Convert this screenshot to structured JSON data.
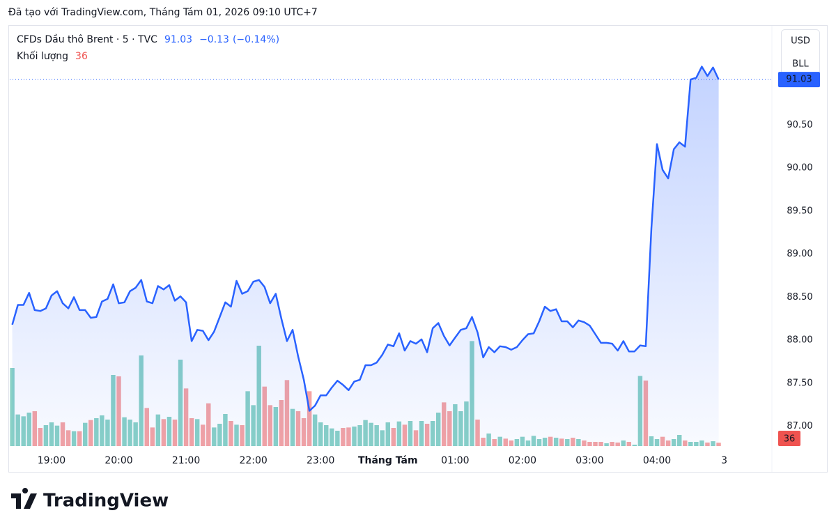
{
  "chart_data": {
    "type": "line",
    "credit": "Đã tạo với TradingView.com, Tháng Tám 01, 2026 09:10 UTC+7",
    "brand": "TradingView",
    "change": "−0.13",
    "change_pct": "(−0.14%)",
    "currency": "USD",
    "unit": "BLL",
    "categories": [
      "18:25",
      "18:30",
      "18:35",
      "18:40",
      "18:45",
      "18:50",
      "18:55",
      "19:00",
      "19:05",
      "19:10",
      "19:15",
      "19:20",
      "19:25",
      "19:30",
      "19:35",
      "19:40",
      "19:45",
      "19:50",
      "19:55",
      "20:00",
      "20:05",
      "20:10",
      "20:15",
      "20:20",
      "20:25",
      "20:30",
      "20:35",
      "20:40",
      "20:45",
      "20:50",
      "20:55",
      "21:00",
      "21:05",
      "21:10",
      "21:15",
      "21:20",
      "21:25",
      "21:30",
      "21:35",
      "21:40",
      "21:45",
      "21:50",
      "21:55",
      "22:00",
      "22:05",
      "22:10",
      "22:15",
      "22:20",
      "22:25",
      "22:30",
      "22:35",
      "22:40",
      "22:45",
      "22:50",
      "22:55",
      "23:00",
      "23:05",
      "23:10",
      "23:15",
      "23:20",
      "23:25",
      "23:30",
      "23:35",
      "23:40",
      "23:45",
      "23:50",
      "23:55",
      "00:00",
      "00:05",
      "00:10",
      "00:15",
      "00:20",
      "00:25",
      "00:30",
      "00:35",
      "00:40",
      "00:45",
      "00:50",
      "00:55",
      "01:00",
      "01:05",
      "01:10",
      "01:15",
      "01:20",
      "01:25",
      "01:30",
      "01:35",
      "01:40",
      "01:45",
      "01:50",
      "01:55",
      "02:00",
      "02:05",
      "02:10",
      "02:15",
      "02:20",
      "02:25",
      "02:30",
      "02:35",
      "02:40",
      "02:45",
      "02:50",
      "02:55",
      "03:00",
      "03:05",
      "03:10",
      "03:15",
      "03:20",
      "03:25",
      "03:30",
      "03:35",
      "03:40",
      "03:45",
      "03:50",
      "03:55",
      "04:00",
      "04:05",
      "04:10",
      "04:15",
      "04:20",
      "04:25",
      "04:30",
      "04:35",
      "04:40",
      "04:45",
      "04:50",
      "04:55"
    ],
    "series": [
      {
        "name": "CFDs Dầu thô Brent · 5 · TVC",
        "color": "#2962ff",
        "values": [
          88.18,
          88.41,
          88.41,
          88.55,
          88.35,
          88.34,
          88.37,
          88.52,
          88.57,
          88.43,
          88.37,
          88.5,
          88.35,
          88.35,
          88.26,
          88.27,
          88.45,
          88.48,
          88.65,
          88.43,
          88.44,
          88.57,
          88.61,
          88.7,
          88.45,
          88.43,
          88.63,
          88.59,
          88.64,
          88.46,
          88.51,
          88.44,
          87.99,
          88.12,
          88.11,
          88.0,
          88.1,
          88.27,
          88.44,
          88.39,
          88.69,
          88.54,
          88.57,
          88.68,
          88.7,
          88.62,
          88.43,
          88.54,
          88.25,
          87.99,
          88.12,
          87.81,
          87.54,
          87.18,
          87.24,
          87.36,
          87.36,
          87.45,
          87.53,
          87.48,
          87.42,
          87.52,
          87.54,
          87.71,
          87.71,
          87.74,
          87.83,
          87.95,
          87.93,
          88.08,
          87.88,
          87.99,
          87.96,
          88.01,
          87.86,
          88.14,
          88.2,
          88.05,
          87.94,
          88.03,
          88.12,
          88.14,
          88.27,
          88.09,
          87.8,
          87.92,
          87.86,
          87.93,
          87.92,
          87.89,
          87.92,
          88.0,
          88.07,
          88.08,
          88.22,
          88.39,
          88.34,
          88.36,
          88.22,
          88.22,
          88.15,
          88.23,
          88.21,
          88.17,
          88.07,
          87.97,
          87.97,
          87.96,
          87.88,
          87.99,
          87.87,
          87.87,
          87.94,
          87.93,
          89.3,
          90.28,
          89.98,
          89.88,
          90.22,
          90.3,
          90.25,
          91.03,
          91.05,
          91.18,
          91.07,
          91.17,
          91.03
        ]
      },
      {
        "name": "Khối lượng",
        "type": "bar",
        "axis": "y2",
        "up_color": "#89d1c6",
        "down_color": "#f5a3a3",
        "label_color": "#ef5350",
        "values": [
          840,
          340,
          320,
          360,
          375,
          195,
          225,
          255,
          220,
          255,
          170,
          160,
          160,
          250,
          280,
          300,
          330,
          285,
          765,
          750,
          310,
          285,
          255,
          975,
          410,
          200,
          340,
          290,
          315,
          285,
          930,
          620,
          300,
          290,
          230,
          460,
          200,
          240,
          345,
          270,
          230,
          225,
          590,
          440,
          1080,
          640,
          440,
          420,
          495,
          710,
          400,
          375,
          300,
          590,
          340,
          255,
          225,
          190,
          165,
          195,
          200,
          210,
          225,
          280,
          250,
          225,
          170,
          255,
          195,
          265,
          230,
          270,
          170,
          270,
          240,
          270,
          360,
          470,
          375,
          450,
          375,
          480,
          1130,
          285,
          90,
          135,
          75,
          100,
          80,
          60,
          75,
          100,
          60,
          110,
          75,
          90,
          100,
          90,
          80,
          75,
          90,
          75,
          60,
          45,
          45,
          45,
          30,
          45,
          38,
          60,
          45,
          15,
          755,
          705,
          105,
          75,
          100,
          60,
          75,
          120,
          60,
          45,
          45,
          60,
          38,
          52,
          36
        ]
      }
    ],
    "ylim": [
      86.77,
      91.63
    ],
    "y2lim": [
      0,
      4500
    ],
    "yticks": [
      {
        "value": 87,
        "label": "87.00"
      },
      {
        "value": 87.5,
        "label": "87.50"
      },
      {
        "value": 88,
        "label": "88.00"
      },
      {
        "value": 88.5,
        "label": "88.50"
      },
      {
        "value": 89,
        "label": "89.00"
      },
      {
        "value": 89.5,
        "label": "89.50"
      },
      {
        "value": 90,
        "label": "90.00"
      },
      {
        "value": 90.5,
        "label": "90.50"
      }
    ],
    "xlim": [
      -0.45,
      135.5
    ],
    "xticks": [
      {
        "value": 7,
        "label": "19:00"
      },
      {
        "value": 19,
        "label": "20:00"
      },
      {
        "value": 31,
        "label": "21:00"
      },
      {
        "value": 43,
        "label": "22:00"
      },
      {
        "value": 55,
        "label": "23:00"
      },
      {
        "value": 67,
        "label": "Tháng Tám"
      },
      {
        "value": 79,
        "label": "01:00"
      },
      {
        "value": 91,
        "label": "02:00"
      },
      {
        "value": 103,
        "label": "03:00"
      },
      {
        "value": 115,
        "label": "04:00"
      },
      {
        "value": 127,
        "label": "3"
      }
    ],
    "grid": false
  }
}
